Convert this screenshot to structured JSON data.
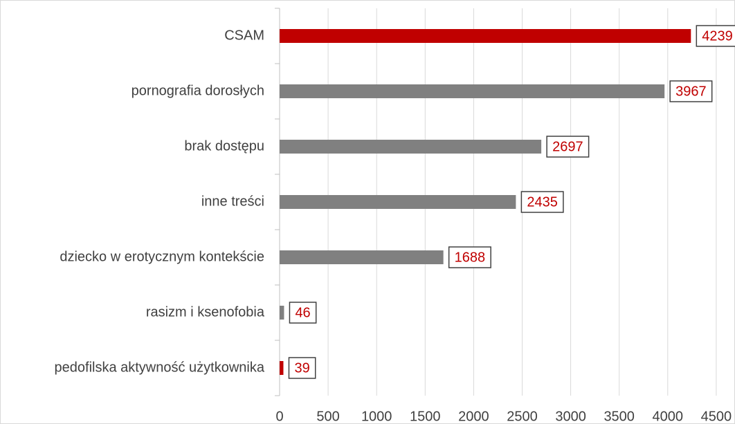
{
  "chart_data": {
    "type": "barh",
    "categories": [
      "CSAM",
      "pornografia dorosłych",
      "brak dostępu",
      "inne treści",
      "dziecko w erotycznym kontekście",
      "rasizm i ksenofobia",
      "pedofilska aktywność użytkownika"
    ],
    "values": [
      4239,
      3967,
      2697,
      2435,
      1688,
      46,
      39
    ],
    "colors": [
      "#c00000",
      "#808080",
      "#808080",
      "#808080",
      "#808080",
      "#808080",
      "#c00000"
    ],
    "label_color": "#c00000",
    "xlim": [
      0,
      4500
    ],
    "xticks": [
      0,
      500,
      1000,
      1500,
      2000,
      2500,
      3000,
      3500,
      4000,
      4500
    ],
    "grid": true
  }
}
